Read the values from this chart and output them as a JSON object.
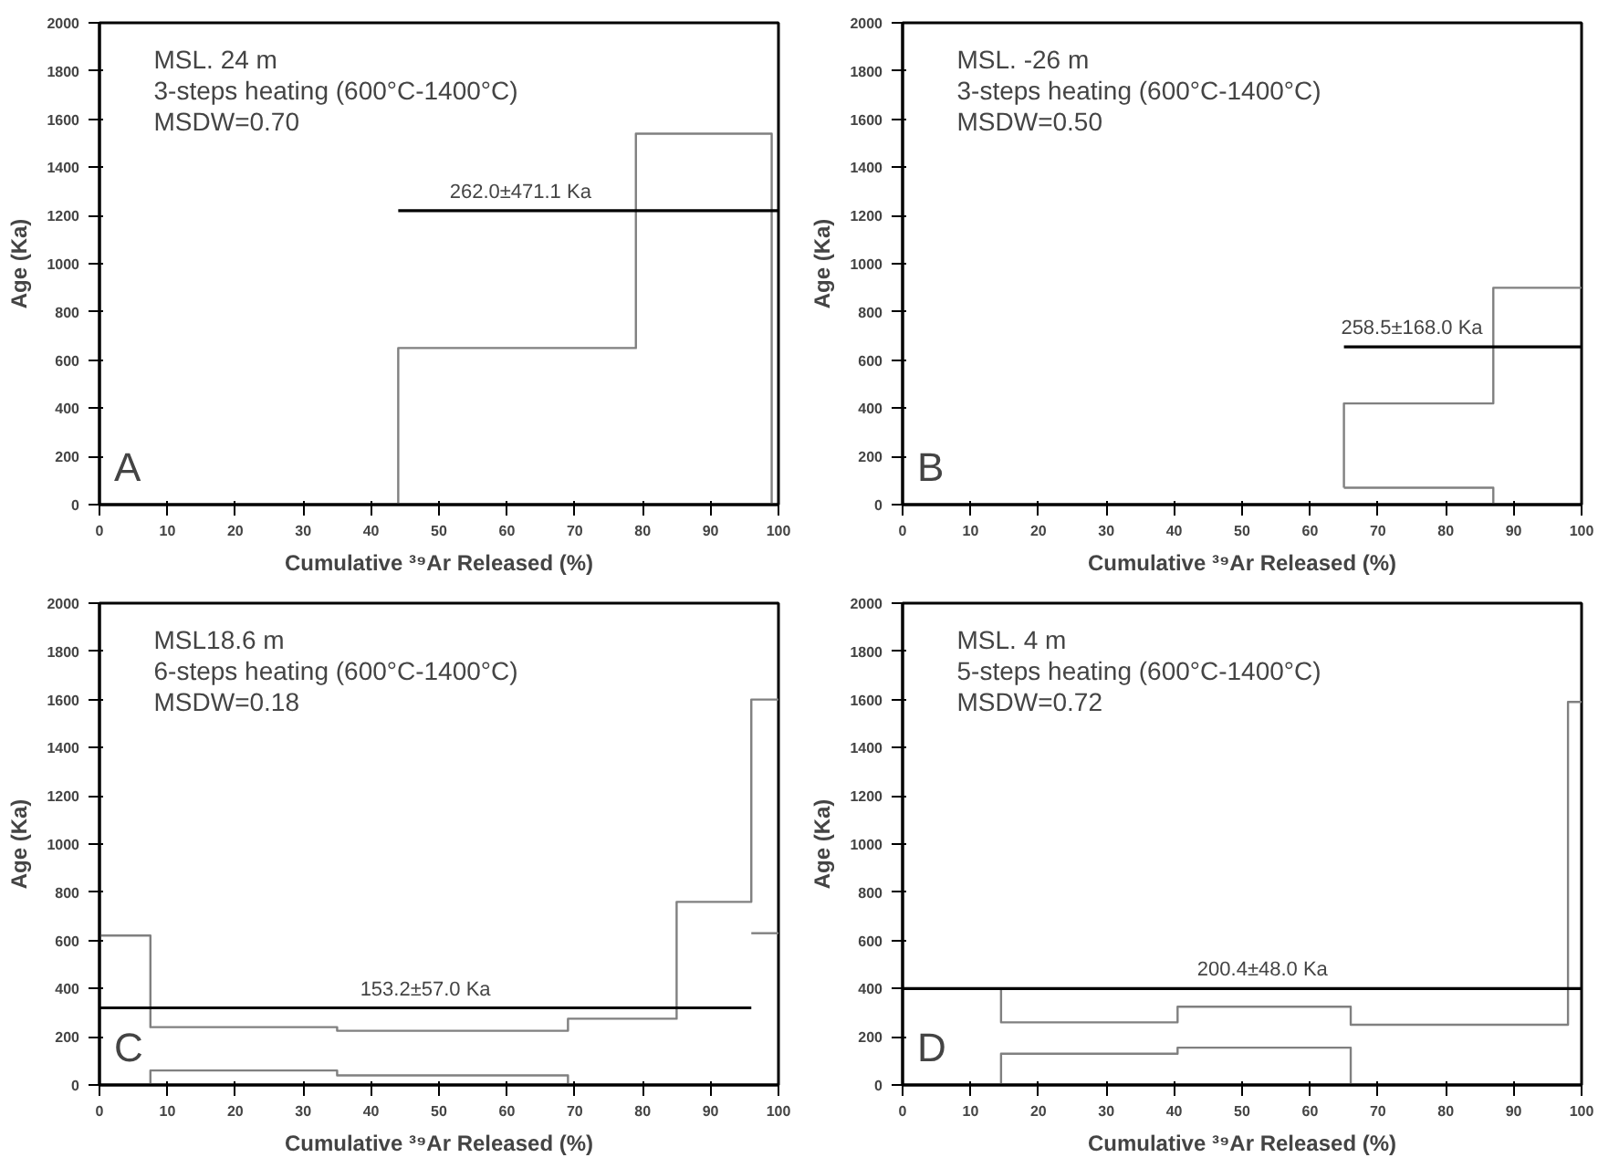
{
  "chart_data": [
    {
      "type": "step",
      "title": "MSL. 24 m",
      "subtitle": "3-steps heating (600°C-1400°C)",
      "xlabel": "Cumulative ³⁹Ar Released (%)",
      "ylabel": "Age (Ka)",
      "xlim": [
        0,
        100
      ],
      "ylim": [
        0,
        2000
      ],
      "xticks": [
        0,
        10,
        20,
        30,
        40,
        50,
        60,
        70,
        80,
        90,
        100
      ],
      "yticks": [
        0,
        200,
        400,
        600,
        800,
        1000,
        1200,
        1400,
        1600,
        1800,
        2000
      ],
      "grid": false,
      "series": [
        {
          "color": "#808080",
          "x": [
            44,
            44,
            79,
            99,
            99
          ],
          "values": [
            0,
            650,
            1540,
            1540,
            0
          ]
        },
        {
          "type": "line",
          "color": "#000000",
          "x": [
            44,
            100
          ],
          "values": [
            1220,
            1220
          ]
        }
      ],
      "annotations": [
        "MSDW=0.70",
        "A",
        {
          "text": "262.0±471.1 Ka",
          "x": 62,
          "y": 1220
        }
      ]
    },
    {
      "type": "step",
      "title": "MSL. -26 m",
      "subtitle": "3-steps heating (600°C-1400°C)",
      "xlabel": "Cumulative ³⁹Ar Released (%)",
      "ylabel": "Age (Ka)",
      "xlim": [
        0,
        100
      ],
      "ylim": [
        0,
        2000
      ],
      "xticks": [
        0,
        10,
        20,
        30,
        40,
        50,
        60,
        70,
        80,
        90,
        100
      ],
      "yticks": [
        0,
        200,
        400,
        600,
        800,
        1000,
        1200,
        1400,
        1600,
        1800,
        2000
      ],
      "grid": false,
      "series": [
        {
          "color": "#808080",
          "x": [
            65,
            65,
            87,
            100
          ],
          "values": [
            70,
            420,
            900,
            900
          ]
        },
        {
          "color": "#808080",
          "x": [
            65,
            87,
            87
          ],
          "values": [
            70,
            70,
            0
          ]
        },
        {
          "type": "line",
          "color": "#000000",
          "x": [
            65,
            100
          ],
          "values": [
            655,
            655
          ]
        }
      ],
      "annotations": [
        "MSDW=0.50",
        "B",
        {
          "text": "258.5±168.0 Ka",
          "x": 75,
          "y": 655
        }
      ]
    },
    {
      "type": "step",
      "title": "MSL18.6 m",
      "subtitle": "6-steps heating (600°C-1400°C)",
      "xlabel": "Cumulative ³⁹Ar Released (%)",
      "ylabel": "Age (Ka)",
      "xlim": [
        0,
        100
      ],
      "ylim": [
        0,
        2000
      ],
      "xticks": [
        0,
        10,
        20,
        30,
        40,
        50,
        60,
        70,
        80,
        90,
        100
      ],
      "yticks": [
        0,
        200,
        400,
        600,
        800,
        1000,
        1200,
        1400,
        1600,
        1800,
        2000
      ],
      "grid": false,
      "series": [
        {
          "color": "#808080",
          "x": [
            0,
            7.5,
            35,
            69,
            85,
            96,
            100
          ],
          "values": [
            620,
            240,
            225,
            275,
            760,
            1600,
            1600
          ]
        },
        {
          "color": "#808080",
          "x": [
            7.5,
            7.5,
            35,
            69,
            69
          ],
          "values": [
            0,
            60,
            40,
            40,
            0
          ]
        },
        {
          "color": "#808080",
          "x": [
            96,
            100
          ],
          "values": [
            630,
            630
          ]
        },
        {
          "type": "line",
          "color": "#000000",
          "x": [
            0,
            96
          ],
          "values": [
            320,
            320
          ]
        }
      ],
      "annotations": [
        "MSDW=0.18",
        "C",
        {
          "text": "153.2±57.0 Ka",
          "x": 48,
          "y": 320
        }
      ]
    },
    {
      "type": "step",
      "title": "MSL. 4 m",
      "subtitle": "5-steps heating (600°C-1400°C)",
      "xlabel": "Cumulative ³⁹Ar Released (%)",
      "ylabel": "Age (Ka)",
      "xlim": [
        0,
        100
      ],
      "ylim": [
        0,
        2000
      ],
      "xticks": [
        0,
        10,
        20,
        30,
        40,
        50,
        60,
        70,
        80,
        90,
        100
      ],
      "yticks": [
        0,
        200,
        400,
        600,
        800,
        1000,
        1200,
        1400,
        1600,
        1800,
        2000
      ],
      "grid": false,
      "series": [
        {
          "color": "#808080",
          "x": [
            0,
            14.5,
            40.5,
            66,
            98,
            100
          ],
          "values": [
            400,
            260,
            325,
            250,
            1590,
            1590
          ]
        },
        {
          "color": "#808080",
          "x": [
            14.5,
            14.5,
            40.5,
            66,
            66
          ],
          "values": [
            0,
            130,
            155,
            155,
            0
          ]
        },
        {
          "type": "line",
          "color": "#000000",
          "x": [
            0,
            100
          ],
          "values": [
            400,
            400
          ]
        }
      ],
      "annotations": [
        "MSDW=0.72",
        "D",
        {
          "text": "200.4±48.0 Ka",
          "x": 53,
          "y": 400
        }
      ]
    }
  ]
}
